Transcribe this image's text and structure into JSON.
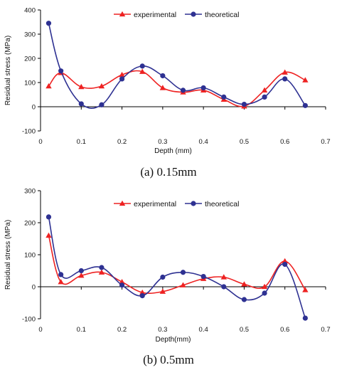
{
  "colors": {
    "experimental": "#ee2222",
    "theoretical": "#2e3192",
    "axis": "#000000"
  },
  "chart_data": [
    {
      "type": "line",
      "caption": "(a)  0.15mm",
      "xlabel": "Depth (mm)",
      "ylabel": "Residual stress (MPa)",
      "xlim": [
        0,
        0.7
      ],
      "ylim": [
        -100,
        400
      ],
      "xticks": [
        "0",
        "0.1",
        "0.2",
        "0.3",
        "0.4",
        "0.5",
        "0.6",
        "0.7"
      ],
      "yticks": [
        "-100",
        "0",
        "100",
        "200",
        "300",
        "400"
      ],
      "legend_position": "top-right",
      "series": [
        {
          "name": "experimental",
          "marker": "triangle",
          "x": [
            0.02,
            0.05,
            0.1,
            0.15,
            0.2,
            0.25,
            0.3,
            0.35,
            0.4,
            0.45,
            0.5,
            0.55,
            0.6,
            0.65
          ],
          "y": [
            85,
            140,
            82,
            85,
            132,
            145,
            78,
            60,
            68,
            30,
            2,
            68,
            142,
            110
          ]
        },
        {
          "name": "theoretical",
          "marker": "circle",
          "x": [
            0.02,
            0.05,
            0.1,
            0.15,
            0.2,
            0.25,
            0.3,
            0.35,
            0.4,
            0.45,
            0.5,
            0.55,
            0.6,
            0.65
          ],
          "y": [
            345,
            148,
            12,
            8,
            115,
            168,
            128,
            68,
            78,
            40,
            10,
            40,
            115,
            5
          ]
        }
      ]
    },
    {
      "type": "line",
      "caption": "(b) 0.5mm",
      "xlabel": "Depth(mm)",
      "ylabel": "Residual stress (MPa)",
      "xlim": [
        0,
        0.7
      ],
      "ylim": [
        -100,
        300
      ],
      "xticks": [
        "0",
        "0.1",
        "0.2",
        "0.3",
        "0.4",
        "0.5",
        "0.6",
        "0.7"
      ],
      "yticks": [
        "-100",
        "0",
        "100",
        "200",
        "300"
      ],
      "legend_position": "top-right",
      "series": [
        {
          "name": "experimental",
          "marker": "triangle",
          "x": [
            0.02,
            0.05,
            0.1,
            0.15,
            0.2,
            0.25,
            0.3,
            0.35,
            0.4,
            0.45,
            0.5,
            0.55,
            0.6,
            0.65
          ],
          "y": [
            160,
            15,
            35,
            45,
            15,
            -18,
            -15,
            5,
            25,
            30,
            8,
            0,
            80,
            -10
          ]
        },
        {
          "name": "theoretical",
          "marker": "circle",
          "x": [
            0.02,
            0.05,
            0.1,
            0.15,
            0.2,
            0.25,
            0.3,
            0.35,
            0.4,
            0.45,
            0.5,
            0.55,
            0.6,
            0.65
          ],
          "y": [
            218,
            38,
            50,
            60,
            5,
            -28,
            30,
            45,
            32,
            0,
            -40,
            -20,
            70,
            -98
          ]
        }
      ]
    }
  ]
}
